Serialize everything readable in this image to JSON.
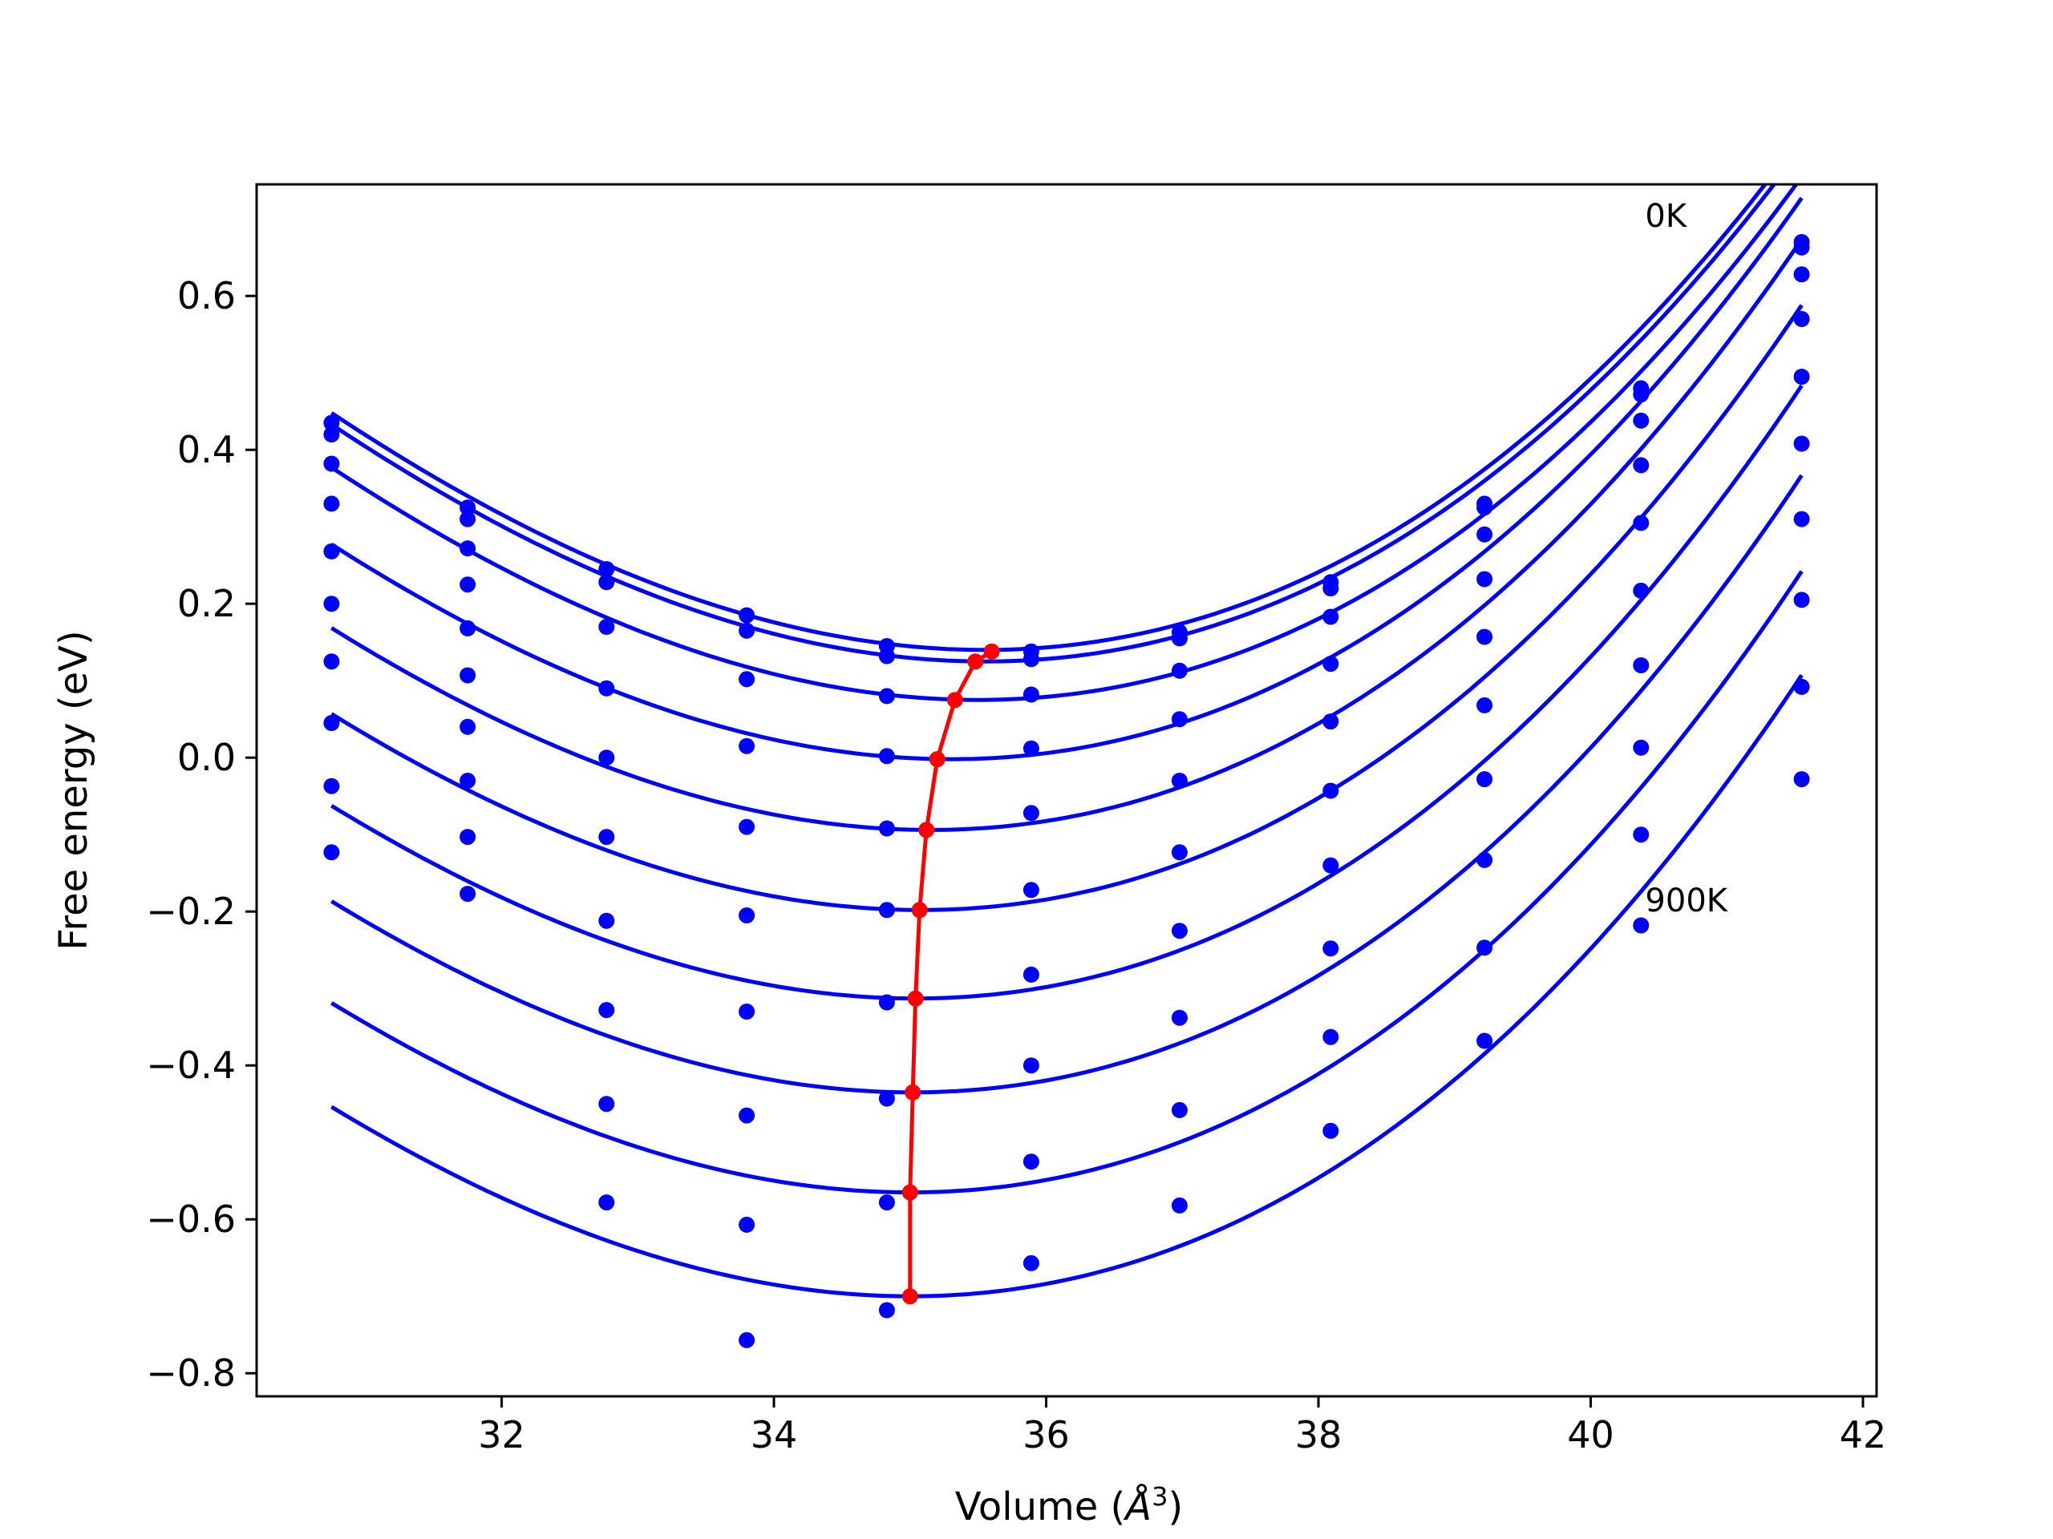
{
  "chart_data": {
    "type": "line",
    "title": "",
    "xlabel": "Volume ($\\AA^3$)",
    "xlabel_display": {
      "prefix": "Volume (",
      "symbol": "Å",
      "sup": "3",
      "suffix": ")"
    },
    "ylabel": "Free energy (eV)",
    "xlim": [
      30.2,
      42.1
    ],
    "ylim": [
      -0.83,
      0.745
    ],
    "xticks": [
      32,
      34,
      36,
      38,
      40,
      42
    ],
    "xtick_labels": [
      "32",
      "34",
      "36",
      "38",
      "40",
      "42"
    ],
    "yticks": [
      0.6,
      0.4,
      0.2,
      0.0,
      -0.2,
      -0.4,
      -0.6,
      -0.8
    ],
    "ytick_labels": [
      "0.6",
      "0.4",
      "0.2",
      "0.0",
      "−0.2",
      "−0.4",
      "−0.6",
      "−0.8"
    ],
    "grid": false,
    "legend": "none",
    "annotations": [
      {
        "text": "0K",
        "x": 40.4,
        "y": 0.715
      },
      {
        "text": "900K",
        "x": 40.4,
        "y": -0.175
      }
    ],
    "volumes": [
      30.75,
      31.75,
      32.77,
      33.8,
      34.83,
      35.89,
      36.98,
      38.09,
      39.22,
      40.37,
      41.55
    ],
    "fit_curves": [
      {
        "x0": 35.55,
        "e0": 0.14,
        "b": 0.01567,
        "c": 0.00048
      },
      {
        "x0": 35.55,
        "e0": 0.125,
        "b": 0.01567,
        "c": 0.00048
      },
      {
        "x0": 35.5,
        "e0": 0.075,
        "b": 0.01567,
        "c": 0.00048
      },
      {
        "x0": 35.3,
        "e0": -0.002,
        "b": 0.01567,
        "c": 0.00048
      },
      {
        "x0": 35.15,
        "e0": -0.094,
        "b": 0.01567,
        "c": 0.00048
      },
      {
        "x0": 35.08,
        "e0": -0.198,
        "b": 0.01567,
        "c": 0.00048
      },
      {
        "x0": 35.04,
        "e0": -0.313,
        "b": 0.01567,
        "c": 0.00048
      },
      {
        "x0": 35.02,
        "e0": -0.435,
        "b": 0.01567,
        "c": 0.00048
      },
      {
        "x0": 35.0,
        "e0": -0.565,
        "b": 0.01567,
        "c": 0.00048
      },
      {
        "x0": 35.0,
        "e0": -0.7,
        "b": 0.01567,
        "c": 0.00048
      }
    ],
    "series": [
      {
        "values": [
          0.435,
          0.325,
          0.245,
          0.185,
          0.145,
          0.138,
          0.163,
          0.228,
          0.33,
          0.48,
          0.67
        ]
      },
      {
        "values": [
          0.42,
          0.31,
          0.228,
          0.165,
          0.132,
          0.128,
          0.155,
          0.22,
          0.325,
          0.472,
          0.663
        ]
      },
      {
        "values": [
          0.382,
          0.272,
          0.17,
          0.102,
          0.08,
          0.082,
          0.113,
          0.183,
          0.29,
          0.438,
          0.628
        ]
      },
      {
        "values": [
          0.33,
          0.225,
          0.09,
          0.015,
          0.002,
          0.012,
          0.05,
          0.122,
          0.232,
          0.38,
          0.57
        ]
      },
      {
        "values": [
          0.268,
          0.168,
          0.0,
          -0.09,
          -0.092,
          -0.072,
          -0.03,
          0.047,
          0.157,
          0.305,
          0.495
        ]
      },
      {
        "values": [
          0.2,
          0.107,
          -0.103,
          -0.205,
          -0.198,
          -0.172,
          -0.123,
          -0.043,
          0.068,
          0.217,
          0.408
        ]
      },
      {
        "values": [
          0.125,
          0.04,
          -0.212,
          -0.33,
          -0.318,
          -0.282,
          -0.225,
          -0.14,
          -0.028,
          0.12,
          0.31
        ]
      },
      {
        "values": [
          0.045,
          -0.03,
          -0.328,
          -0.465,
          -0.443,
          -0.4,
          -0.338,
          -0.248,
          -0.133,
          0.013,
          0.205
        ]
      },
      {
        "values": [
          -0.037,
          -0.103,
          -0.45,
          -0.607,
          -0.578,
          -0.525,
          -0.458,
          -0.363,
          -0.247,
          -0.1,
          0.092
        ]
      },
      {
        "values": [
          -0.123,
          -0.177,
          -0.578,
          -0.757,
          -0.718,
          -0.657,
          -0.582,
          -0.485,
          -0.368,
          -0.218,
          -0.028
        ]
      }
    ],
    "minima_series": {
      "x": [
        35.6,
        35.48,
        35.33,
        35.2,
        35.12,
        35.07,
        35.04,
        35.02,
        35.0,
        35.0
      ],
      "y": [
        0.138,
        0.125,
        0.075,
        -0.002,
        -0.094,
        -0.198,
        -0.313,
        -0.435,
        -0.565,
        -0.7
      ]
    },
    "colors": {
      "fit": "#0000ff",
      "points": "#0000ff",
      "minima": "#ff0000",
      "axes": "#000000"
    }
  }
}
